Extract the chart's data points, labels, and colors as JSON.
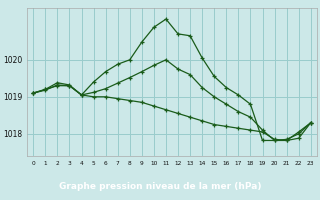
{
  "title": "Graphe pression niveau de la mer (hPa)",
  "bg_color": "#cce8e8",
  "label_bg_color": "#5a8a6a",
  "grid_color": "#99cccc",
  "line_color": "#1a5c1a",
  "xlim": [
    -0.5,
    23.5
  ],
  "ylim": [
    1017.4,
    1021.4
  ],
  "yticks": [
    1018,
    1019,
    1020
  ],
  "xticks": [
    0,
    1,
    2,
    3,
    4,
    5,
    6,
    7,
    8,
    9,
    10,
    11,
    12,
    13,
    14,
    15,
    16,
    17,
    18,
    19,
    20,
    21,
    22,
    23
  ],
  "series1_x": [
    0,
    1,
    2,
    3,
    4,
    5,
    6,
    7,
    8,
    9,
    10,
    11,
    12,
    13,
    14,
    15,
    16,
    17,
    18,
    19,
    20,
    21,
    22,
    23
  ],
  "series1_y": [
    1019.1,
    1019.2,
    1019.3,
    1019.3,
    1019.05,
    1019.0,
    1019.0,
    1018.95,
    1018.9,
    1018.85,
    1018.75,
    1018.65,
    1018.55,
    1018.45,
    1018.35,
    1018.25,
    1018.2,
    1018.15,
    1018.1,
    1018.05,
    1017.85,
    1017.82,
    1017.88,
    1018.3
  ],
  "series2_x": [
    0,
    1,
    2,
    3,
    4,
    5,
    6,
    7,
    8,
    9,
    10,
    11,
    12,
    13,
    14,
    15,
    16,
    17,
    18,
    19,
    20,
    21,
    22,
    23
  ],
  "series2_y": [
    1019.1,
    1019.2,
    1019.38,
    1019.32,
    1019.05,
    1019.4,
    1019.68,
    1019.88,
    1020.0,
    1020.48,
    1020.88,
    1021.1,
    1020.7,
    1020.65,
    1020.05,
    1019.55,
    1019.25,
    1019.05,
    1018.8,
    1017.82,
    1017.82,
    1017.82,
    1018.05,
    1018.3
  ],
  "series3_x": [
    0,
    1,
    2,
    3,
    4,
    5,
    6,
    7,
    8,
    9,
    10,
    11,
    12,
    13,
    14,
    15,
    16,
    17,
    18,
    19,
    20,
    21,
    22,
    23
  ],
  "series3_y": [
    1019.1,
    1019.18,
    1019.32,
    1019.3,
    1019.05,
    1019.12,
    1019.22,
    1019.37,
    1019.52,
    1019.68,
    1019.85,
    1020.0,
    1019.75,
    1019.6,
    1019.25,
    1019.0,
    1018.8,
    1018.6,
    1018.45,
    1018.1,
    1017.82,
    1017.85,
    1018.0,
    1018.3
  ]
}
